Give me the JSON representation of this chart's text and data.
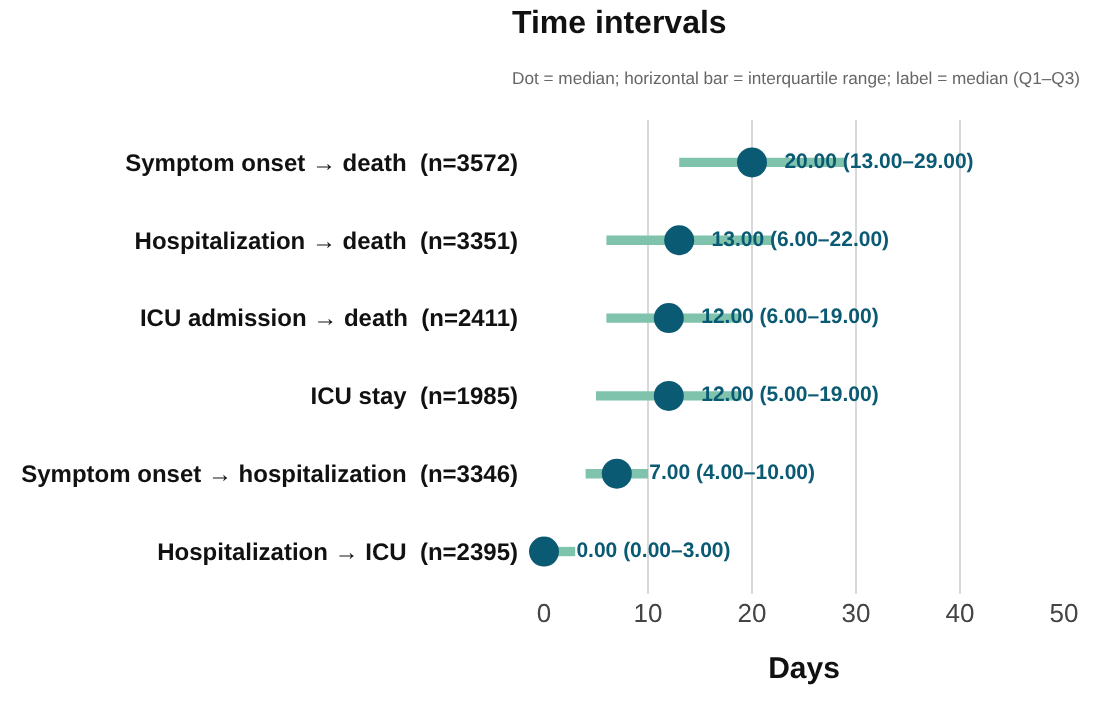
{
  "chart_data": {
    "type": "bar",
    "orientation": "horizontal",
    "title": "Time intervals",
    "subtitle": "Dot = median; horizontal bar = interquartile range; label = median (Q1–Q3)",
    "xlabel": "Days",
    "categories": [
      "Symptom onset → death  (n=3572)",
      "Hospitalization → death  (n=3351)",
      "ICU admission → death  (n=2411)",
      "ICU stay  (n=1985)",
      "Symptom onset → hospitalization  (n=3346)",
      "Hospitalization → ICU  (n=2395)"
    ],
    "series": [
      {
        "color": "#7fc3ad",
        "base": [
          13,
          6,
          6,
          5,
          4,
          0
        ],
        "values": [
          16,
          16,
          13,
          14,
          6,
          3
        ]
      },
      {
        "type": "scatter",
        "color": "#0b5a73",
        "values": [
          20,
          13,
          12,
          12,
          7,
          0
        ],
        "value_labels": [
          "20.00 (13.00–29.00)",
          "13.00 (6.00–22.00)",
          "12.00 (6.00–19.00)",
          "12.00 (5.00–19.00)",
          "7.00 (4.00–10.00)",
          "0.00 (0.00–3.00)"
        ]
      }
    ],
    "marker": "circle",
    "xlim": [
      0,
      50
    ],
    "xticks": [
      0,
      10,
      20,
      30,
      40,
      50
    ],
    "grid": "x"
  }
}
